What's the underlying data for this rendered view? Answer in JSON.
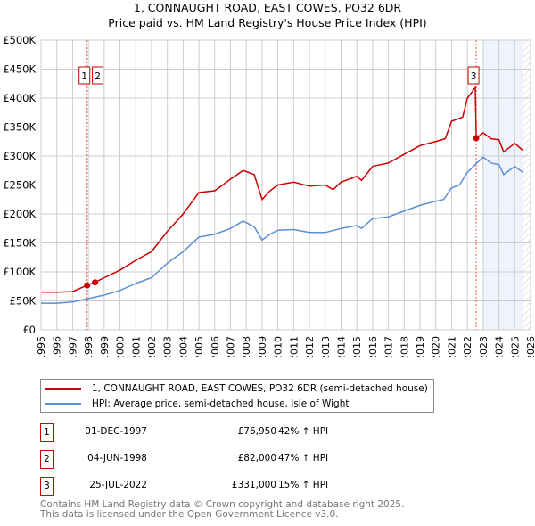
{
  "chart_data": {
    "type": "line",
    "title": "1, CONNAUGHT ROAD, EAST COWES, PO32 6DR",
    "subtitle": "Price paid vs. HM Land Registry's House Price Index (HPI)",
    "xlim": [
      1995,
      2026
    ],
    "ylim": [
      0,
      500000
    ],
    "x_ticks": [
      "1995",
      "1996",
      "1997",
      "1998",
      "1999",
      "2000",
      "2001",
      "2002",
      "2003",
      "2004",
      "2005",
      "2006",
      "2007",
      "2008",
      "2009",
      "2010",
      "2011",
      "2012",
      "2013",
      "2014",
      "2015",
      "2016",
      "2017",
      "2018",
      "2019",
      "2020",
      "2021",
      "2022",
      "2023",
      "2024",
      "2025",
      "2026"
    ],
    "y_ticks": [
      {
        "v": 0,
        "l": "£0"
      },
      {
        "v": 50000,
        "l": "£50K"
      },
      {
        "v": 100000,
        "l": "£100K"
      },
      {
        "v": 150000,
        "l": "£150K"
      },
      {
        "v": 200000,
        "l": "£200K"
      },
      {
        "v": 250000,
        "l": "£250K"
      },
      {
        "v": 300000,
        "l": "£300K"
      },
      {
        "v": 350000,
        "l": "£350K"
      },
      {
        "v": 400000,
        "l": "£400K"
      },
      {
        "v": 450000,
        "l": "£450K"
      },
      {
        "v": 500000,
        "l": "£500K"
      }
    ],
    "grid": true,
    "forecast_shade_from": 2023.0,
    "hatch_from": 2025.5,
    "series": [
      {
        "name": "1, CONNAUGHT ROAD, EAST COWES, PO32 6DR (semi-detached house)",
        "color": "#cc0000",
        "x": [
          1995,
          1996,
          1997,
          1997.92,
          1998.42,
          1999,
          2000,
          2001,
          2002,
          2003,
          2004,
          2005,
          2006,
          2007,
          2007.8,
          2008.5,
          2009,
          2009.5,
          2010,
          2011,
          2012,
          2013,
          2013.5,
          2014,
          2015,
          2015.3,
          2016,
          2017,
          2018,
          2019,
          2020,
          2020.6,
          2021,
          2021.7,
          2022,
          2022.5,
          2022.56,
          2023,
          2023.5,
          2024,
          2024.3,
          2025,
          2025.5
        ],
        "y": [
          65000,
          65000,
          66000,
          76950,
          82000,
          90000,
          103000,
          120000,
          135000,
          170000,
          200000,
          237000,
          240000,
          260000,
          275000,
          268000,
          225000,
          240000,
          250000,
          255000,
          248000,
          250000,
          242000,
          255000,
          265000,
          258000,
          282000,
          288000,
          303000,
          318000,
          325000,
          330000,
          360000,
          367000,
          400000,
          418000,
          331000,
          340000,
          330000,
          328000,
          307000,
          322000,
          310000
        ]
      },
      {
        "name": "HPI: Average price, semi-detached house, Isle of Wight",
        "color": "#5b8fd4",
        "x": [
          1995,
          1996,
          1997,
          1998,
          1999,
          2000,
          2001,
          2002,
          2003,
          2004,
          2005,
          2006,
          2007,
          2007.8,
          2008.5,
          2009,
          2009.5,
          2010,
          2011,
          2012,
          2013,
          2014,
          2015,
          2015.3,
          2016,
          2017,
          2018,
          2019,
          2020,
          2020.5,
          2021,
          2021.5,
          2022,
          2022.6,
          2023,
          2023.5,
          2024,
          2024.3,
          2025,
          2025.5
        ],
        "y": [
          46000,
          46000,
          48000,
          54000,
          60000,
          68000,
          80000,
          90000,
          115000,
          135000,
          160000,
          165000,
          175000,
          188000,
          178000,
          155000,
          165000,
          172000,
          173000,
          168000,
          168000,
          175000,
          180000,
          175000,
          192000,
          195000,
          205000,
          215000,
          222000,
          225000,
          245000,
          250000,
          272000,
          288000,
          298000,
          288000,
          285000,
          268000,
          282000,
          272000
        ]
      }
    ],
    "sales": [
      {
        "label": "1",
        "x": 1997.92,
        "y": 76950
      },
      {
        "label": "2",
        "x": 1998.42,
        "y": 82000
      },
      {
        "label": "3",
        "x": 2022.56,
        "y": 331000
      }
    ]
  },
  "legend": {
    "red": "1, CONNAUGHT ROAD, EAST COWES, PO32 6DR (semi-detached house)",
    "blue": "HPI: Average price, semi-detached house, Isle of Wight"
  },
  "table": [
    {
      "num": "1",
      "date": "01-DEC-1997",
      "price": "£76,950",
      "hpi": "42% ↑ HPI"
    },
    {
      "num": "2",
      "date": "04-JUN-1998",
      "price": "£82,000",
      "hpi": "47% ↑ HPI"
    },
    {
      "num": "3",
      "date": "25-JUL-2022",
      "price": "£331,000",
      "hpi": "15% ↑ HPI"
    }
  ],
  "footer": [
    "Contains HM Land Registry data © Crown copyright and database right 2025.",
    "This data is licensed under the Open Government Licence v3.0."
  ]
}
